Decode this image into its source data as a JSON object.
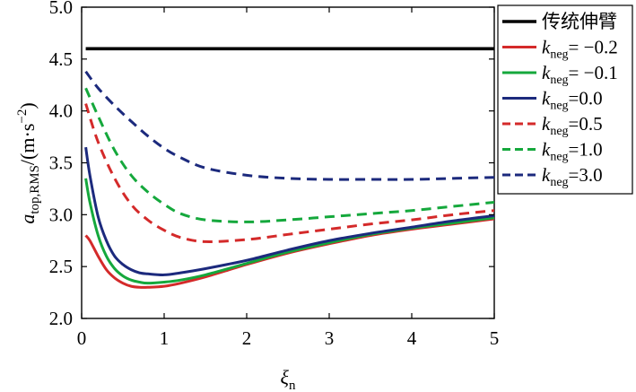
{
  "chart_data": {
    "type": "line",
    "xlabel": "ξ",
    "xlabel_sub": "n",
    "ylabel": "a",
    "ylabel_sub": "top,RMS",
    "ylabel_suffix": "/(m·s",
    "ylabel_sup": "−2",
    "ylabel_close": ")",
    "xlim": [
      0,
      5
    ],
    "ylim": [
      2.0,
      5.0
    ],
    "xticks": [
      "0",
      "1",
      "2",
      "3",
      "4",
      "5"
    ],
    "yticks": [
      "2.0",
      "2.5",
      "3.0",
      "3.5",
      "4.0",
      "4.5",
      "5.0"
    ],
    "legend_position": "right-outside",
    "series": [
      {
        "name": "传统伸臂",
        "k_label": "",
        "k_value": "",
        "color": "#000000",
        "dash": "solid",
        "x": [
          0.05,
          5.0
        ],
        "y": [
          4.6,
          4.6
        ]
      },
      {
        "name": "kneg= −0.2",
        "k_label": "k",
        "k_value": "= −0.2",
        "color": "#d42a2a",
        "dash": "solid",
        "x": [
          0.05,
          0.1,
          0.2,
          0.3,
          0.4,
          0.5,
          0.6,
          0.7,
          0.8,
          1.0,
          1.2,
          1.5,
          2.0,
          2.5,
          3.0,
          3.5,
          4.0,
          4.5,
          5.0
        ],
        "y": [
          2.8,
          2.75,
          2.6,
          2.47,
          2.39,
          2.34,
          2.31,
          2.3,
          2.3,
          2.31,
          2.34,
          2.4,
          2.52,
          2.63,
          2.72,
          2.8,
          2.86,
          2.91,
          2.96
        ]
      },
      {
        "name": "kneg= −0.1",
        "k_label": "k",
        "k_value": "= −0.1",
        "color": "#15a83c",
        "dash": "solid",
        "x": [
          0.05,
          0.1,
          0.2,
          0.3,
          0.4,
          0.5,
          0.6,
          0.7,
          0.8,
          1.0,
          1.2,
          1.5,
          2.0,
          2.5,
          3.0,
          3.5,
          4.0,
          4.5,
          5.0
        ],
        "y": [
          3.35,
          3.12,
          2.8,
          2.6,
          2.48,
          2.41,
          2.37,
          2.35,
          2.34,
          2.35,
          2.37,
          2.42,
          2.53,
          2.64,
          2.73,
          2.81,
          2.87,
          2.92,
          2.97
        ]
      },
      {
        "name": "kneg=0.0",
        "k_label": "k",
        "k_value": "=0.0",
        "color": "#1c2a7d",
        "dash": "solid",
        "x": [
          0.05,
          0.1,
          0.2,
          0.3,
          0.4,
          0.5,
          0.6,
          0.7,
          0.8,
          1.0,
          1.2,
          1.5,
          2.0,
          2.5,
          3.0,
          3.5,
          4.0,
          4.5,
          5.0
        ],
        "y": [
          3.65,
          3.38,
          2.98,
          2.75,
          2.6,
          2.52,
          2.47,
          2.44,
          2.43,
          2.42,
          2.44,
          2.48,
          2.56,
          2.66,
          2.75,
          2.82,
          2.88,
          2.94,
          2.99
        ]
      },
      {
        "name": "kneg=0.5",
        "k_label": "k",
        "k_value": "=0.5",
        "color": "#d42a2a",
        "dash": "dashed",
        "x": [
          0.05,
          0.2,
          0.4,
          0.6,
          0.8,
          1.0,
          1.2,
          1.5,
          2.0,
          2.5,
          3.0,
          3.5,
          4.0,
          4.5,
          5.0
        ],
        "y": [
          4.07,
          3.7,
          3.35,
          3.1,
          2.95,
          2.85,
          2.78,
          2.74,
          2.76,
          2.81,
          2.86,
          2.91,
          2.95,
          3.0,
          3.04
        ]
      },
      {
        "name": "kneg=1.0",
        "k_label": "k",
        "k_value": "=1.0",
        "color": "#15a83c",
        "dash": "dashed",
        "x": [
          0.05,
          0.2,
          0.4,
          0.6,
          0.8,
          1.0,
          1.2,
          1.5,
          2.0,
          2.5,
          3.0,
          3.5,
          4.0,
          4.5,
          5.0
        ],
        "y": [
          4.22,
          3.95,
          3.62,
          3.38,
          3.22,
          3.1,
          3.01,
          2.95,
          2.93,
          2.95,
          2.98,
          3.01,
          3.04,
          3.08,
          3.12
        ]
      },
      {
        "name": "kneg=3.0",
        "k_label": "k",
        "k_value": "=3.0",
        "color": "#1c2a7d",
        "dash": "dashed",
        "x": [
          0.05,
          0.2,
          0.4,
          0.6,
          0.8,
          1.0,
          1.2,
          1.5,
          2.0,
          2.5,
          3.0,
          3.5,
          4.0,
          4.5,
          5.0
        ],
        "y": [
          4.38,
          4.22,
          4.05,
          3.9,
          3.76,
          3.64,
          3.55,
          3.45,
          3.38,
          3.35,
          3.34,
          3.34,
          3.34,
          3.35,
          3.36
        ]
      }
    ]
  }
}
